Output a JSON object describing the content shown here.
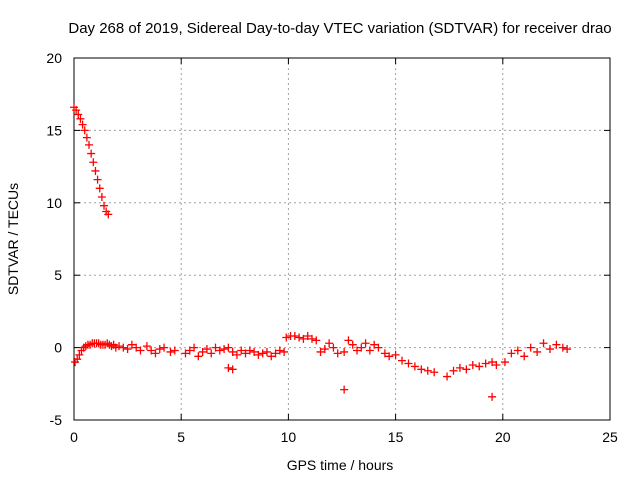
{
  "chart_data": {
    "type": "scatter",
    "title": "Day 268 of 2019, Sidereal Day-to-day VTEC variation (SDTVAR) for receiver drao",
    "xlabel": "GPS time / hours",
    "ylabel": "SDTVAR / TECUs",
    "xlim": [
      0,
      25
    ],
    "ylim": [
      -5,
      20
    ],
    "xticks": [
      "0",
      "5",
      "10",
      "15",
      "20",
      "25"
    ],
    "yticks": [
      "-5",
      "0",
      "5",
      "10",
      "15",
      "20"
    ],
    "grid": true,
    "marker": "+",
    "color": "#ff0000",
    "series": [
      {
        "name": "drao",
        "x": [
          0.0,
          0.1,
          0.2,
          0.3,
          0.4,
          0.5,
          0.6,
          0.7,
          0.8,
          0.9,
          1.0,
          1.1,
          1.2,
          1.3,
          1.4,
          1.5,
          1.6,
          0.05,
          0.15,
          0.25,
          0.35,
          0.45,
          0.55,
          0.65,
          0.75,
          0.85,
          0.95,
          1.05,
          1.15,
          1.25,
          1.35,
          1.45,
          1.55,
          1.65,
          1.75,
          1.85,
          1.95,
          2.1,
          2.3,
          2.5,
          2.7,
          2.9,
          3.1,
          3.4,
          3.6,
          3.8,
          4.0,
          4.2,
          4.5,
          4.7,
          5.2,
          5.4,
          5.6,
          5.8,
          6.0,
          6.2,
          6.4,
          6.6,
          6.8,
          7.0,
          7.2,
          7.4,
          7.6,
          7.8,
          8.0,
          8.2,
          8.4,
          8.6,
          8.8,
          9.0,
          9.2,
          9.4,
          9.6,
          9.8,
          9.9,
          10.1,
          10.3,
          10.5,
          10.7,
          10.9,
          11.1,
          11.3,
          11.5,
          11.7,
          11.9,
          12.1,
          12.3,
          12.6,
          12.8,
          13.0,
          13.2,
          13.4,
          13.6,
          13.8,
          14.0,
          14.2,
          14.5,
          14.7,
          15.0,
          15.3,
          15.6,
          15.9,
          16.2,
          16.5,
          16.8,
          17.4,
          17.7,
          18.0,
          18.3,
          18.6,
          18.9,
          19.2,
          19.5,
          19.7,
          20.1,
          20.4,
          20.7,
          21.0,
          21.3,
          21.6,
          21.9,
          22.2,
          22.5,
          22.8,
          23.0,
          7.2,
          7.4,
          12.6,
          19.5
        ],
        "y": [
          16.6,
          16.4,
          16.1,
          15.8,
          15.4,
          15.0,
          14.5,
          14.0,
          13.4,
          12.8,
          12.2,
          11.6,
          11.0,
          10.4,
          9.8,
          9.4,
          9.2,
          -1.0,
          -0.8,
          -0.5,
          -0.2,
          0.0,
          0.1,
          0.2,
          0.2,
          0.3,
          0.3,
          0.3,
          0.3,
          0.2,
          0.2,
          0.2,
          0.3,
          0.2,
          0.1,
          0.2,
          0.0,
          0.1,
          0.0,
          -0.1,
          0.2,
          0.0,
          -0.2,
          0.1,
          -0.2,
          -0.4,
          -0.1,
          0.0,
          -0.3,
          -0.2,
          -0.4,
          -0.2,
          0.0,
          -0.6,
          -0.3,
          -0.1,
          -0.4,
          0.0,
          -0.2,
          -0.1,
          0.0,
          -0.3,
          -0.5,
          -0.2,
          -0.4,
          -0.2,
          -0.3,
          -0.5,
          -0.4,
          -0.3,
          -0.6,
          -0.4,
          -0.2,
          -0.3,
          0.7,
          0.8,
          0.8,
          0.7,
          0.6,
          0.8,
          0.6,
          0.5,
          -0.3,
          -0.1,
          0.3,
          0.0,
          -0.4,
          -0.3,
          0.5,
          0.2,
          -0.2,
          0.0,
          0.3,
          -0.2,
          0.2,
          0.0,
          -0.4,
          -0.6,
          -0.5,
          -0.9,
          -1.1,
          -1.3,
          -1.5,
          -1.6,
          -1.7,
          -2.0,
          -1.6,
          -1.4,
          -1.5,
          -1.2,
          -1.3,
          -1.1,
          -1.0,
          -1.2,
          -1.0,
          -0.4,
          -0.2,
          -0.6,
          0.0,
          -0.3,
          0.3,
          -0.1,
          0.2,
          0.0,
          -0.1,
          -1.4,
          -1.5,
          -2.9,
          -3.4
        ]
      }
    ]
  }
}
